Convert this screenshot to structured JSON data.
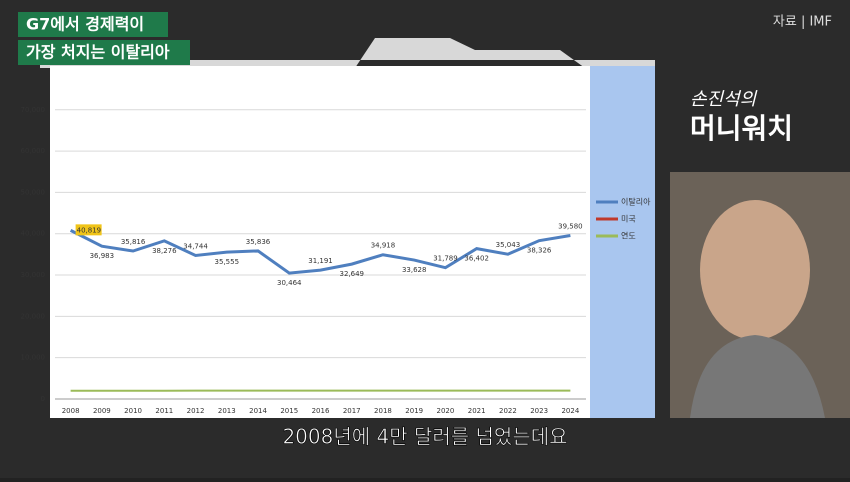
{
  "overlay": {
    "headline": [
      "G7에서 경제력이",
      "가장 처지는 이탈리아"
    ],
    "source": "자료 | IMF",
    "logo": [
      "손진석의",
      "머니워치"
    ],
    "caption": "2008년에 4만 달러를 넘었는데요"
  },
  "chart_data": {
    "type": "line",
    "categories": [
      "2008",
      "2009",
      "2010",
      "2011",
      "2012",
      "2013",
      "2014",
      "2015",
      "2016",
      "2017",
      "2018",
      "2019",
      "2020",
      "2021",
      "2022",
      "2023",
      "2024"
    ],
    "series": [
      {
        "name": "이탈리아",
        "color": "#4f7fbf",
        "values": [
          40819,
          36983,
          35816,
          38276,
          34744,
          35555,
          35836,
          30464,
          31191,
          32649,
          34918,
          33628,
          31789,
          36402,
          35043,
          38326,
          39580
        ],
        "value_labels": [
          "40,819",
          "36,983",
          "35,816",
          "38,276",
          "34,744",
          "35,555",
          "35,836",
          "30,464",
          "31,191",
          "32,649",
          "34,918",
          "33,628",
          "31,789",
          "36,402",
          "35,043",
          "38,326",
          "39,580"
        ]
      },
      {
        "name": "미국",
        "color": "#c0392b",
        "values": [
          null,
          null,
          null,
          null,
          null,
          null,
          null,
          null,
          null,
          null,
          null,
          null,
          null,
          null,
          null,
          null,
          null
        ]
      },
      {
        "name": "연도",
        "color": "#9bbb59",
        "values": [
          2008,
          2009,
          2010,
          2011,
          2012,
          2013,
          2014,
          2015,
          2016,
          2017,
          2018,
          2019,
          2020,
          2021,
          2022,
          2023,
          2024
        ]
      }
    ],
    "ylim": [
      0,
      76000
    ],
    "yticks": [
      0,
      {
        "value": 10000,
        "label": "10,000"
      },
      {
        "value": 20000,
        "label": "20,000"
      },
      {
        "value": 30000,
        "label": "30,000"
      },
      {
        "value": 40000,
        "label": "40,000"
      },
      {
        "value": 50000,
        "label": "50,000"
      },
      {
        "value": 60000,
        "label": "60,000"
      },
      {
        "value": 70000,
        "label": "70,000"
      }
    ],
    "grid": true,
    "legend": "right"
  }
}
